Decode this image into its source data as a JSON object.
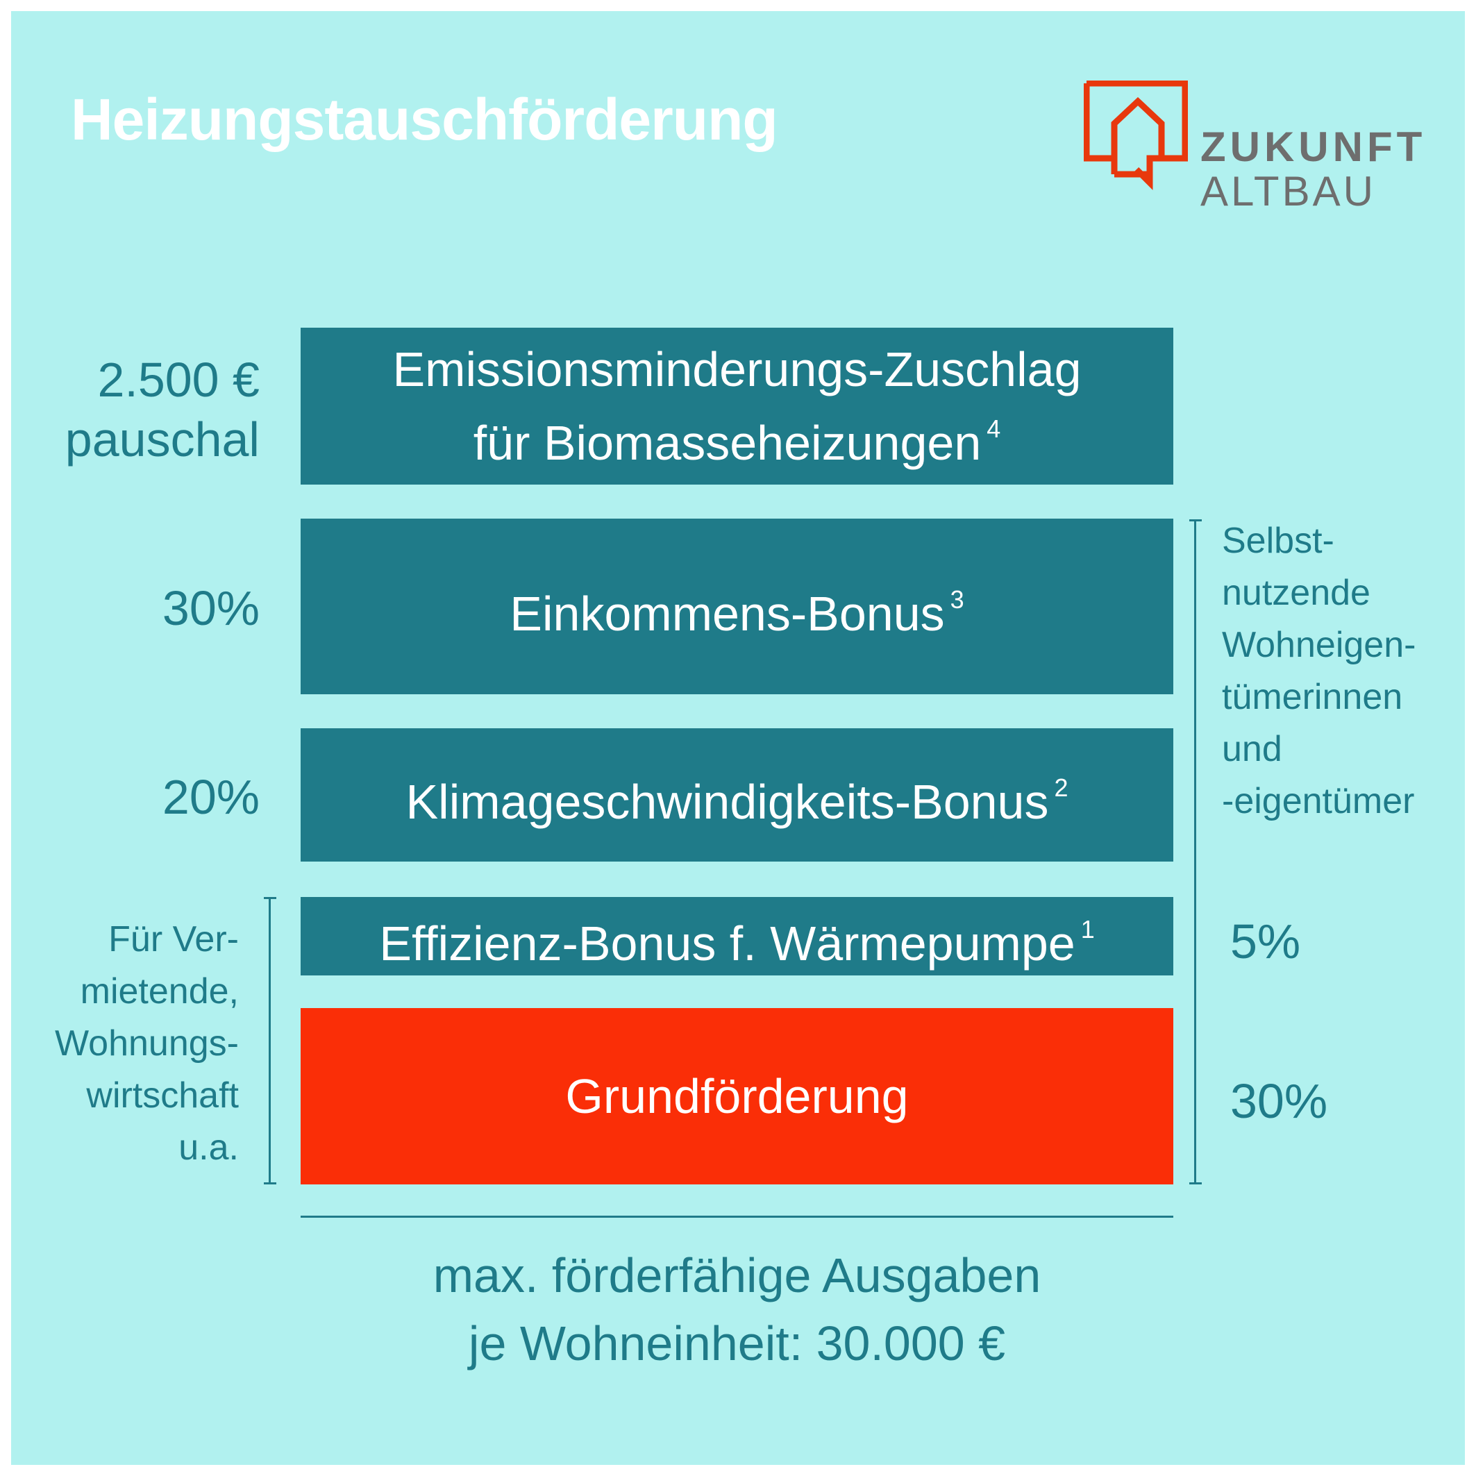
{
  "title": "Heizungstauschförderung",
  "logo": {
    "line1": "ZUKUNFT",
    "line2": "ALTBAU",
    "icon": "house-speech-bubble-icon",
    "color": "#e8380d"
  },
  "colors": {
    "background": "#b1f1ef",
    "block": "#1f7b89",
    "highlight_block": "#fa2e07",
    "text_accent": "#1f7b89",
    "title": "#ffffff"
  },
  "blocks": {
    "emission": {
      "line1": "Emissionsminderungs-Zuschlag",
      "line2": "für Biomasseheizungen",
      "footnote": "4",
      "amount_line1": "2.500 €",
      "amount_line2": "pauschal"
    },
    "income": {
      "label": "Einkommens-Bonus",
      "footnote": "3",
      "amount": "30%"
    },
    "climate": {
      "label": "Klimageschwindigkeits-Bonus",
      "footnote": "2",
      "amount": "20%"
    },
    "efficiency": {
      "label": "Effizienz-Bonus f. Wärmepumpe",
      "footnote": "1",
      "amount": "5%"
    },
    "basic": {
      "label": "Grundförderung",
      "amount": "30%"
    }
  },
  "groups": {
    "left": [
      "Für Ver-",
      "mietende,",
      "Wohnungs-",
      "wirtschaft",
      "u.a."
    ],
    "right": [
      "Selbst-",
      "nutzende",
      "Wohneigen-",
      "tümerinnen",
      "und",
      "-eigentümer"
    ]
  },
  "footer": {
    "line1": "max. förderfähige Ausgaben",
    "line2": "je Wohneinheit: 30.000 €"
  }
}
